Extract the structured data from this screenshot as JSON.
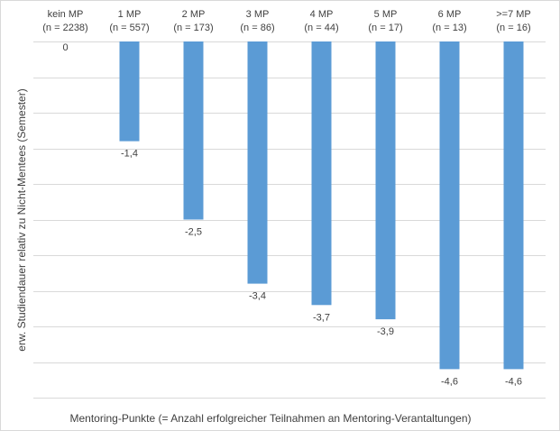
{
  "chart_data": {
    "type": "bar",
    "categories": [
      "kein MP",
      "1 MP",
      "2 MP",
      "3 MP",
      "4 MP",
      "5 MP",
      "6 MP",
      ">=7 MP"
    ],
    "sample_sizes": [
      "(n = 2238)",
      "(n = 557)",
      "(n = 173)",
      "(n = 86)",
      "(n = 44)",
      "(n = 17)",
      "(n = 13)",
      "(n = 16)"
    ],
    "values": [
      0,
      -1.4,
      -2.5,
      -3.4,
      -3.7,
      -3.9,
      -4.6,
      -4.6
    ],
    "value_labels": [
      "0",
      "-1,4",
      "-2,5",
      "-3,4",
      "-3,7",
      "-3,9",
      "-4,6",
      "-4,6"
    ],
    "xlabel": "Mentoring-Punkte  (= Anzahl erfolgreicher Teilnahmen an Mentoring-Verantaltungen)",
    "ylabel": "erw. Studiendauer relativ zu Nicht-Mentees  (Semester)",
    "ylim": [
      -5,
      0
    ],
    "grid": true,
    "category_labels_position": "top",
    "bar_color": "#5b9bd5",
    "grid_color": "#d9d9d9"
  }
}
